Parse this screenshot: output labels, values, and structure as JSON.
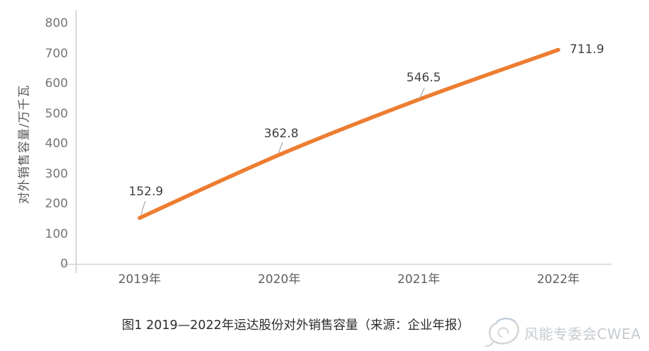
{
  "chart_data": {
    "type": "line",
    "title": "",
    "categories": [
      "2019年",
      "2020年",
      "2021年",
      "2022年"
    ],
    "values": [
      152.9,
      362.8,
      546.5,
      711.9
    ],
    "data_labels": [
      "152.9",
      "362.8",
      "546.5",
      "711.9"
    ],
    "xlabel": "",
    "ylabel": "对外销售容量/万千瓦",
    "ylim": [
      0,
      800
    ],
    "ytick_interval": 100,
    "yticks_top_down": [
      "800",
      "700",
      "600",
      "500",
      "400",
      "300",
      "200",
      "100",
      "0"
    ],
    "grid": false,
    "legend": false,
    "line_color": "#ED7D31",
    "axis_color": "#C9C9C9",
    "tick_label_color": "#767676",
    "data_label_color": "#3F3F3F"
  },
  "caption": {
    "text": "图1 2019—2022年运达股份对外销售容量（来源：企业年报）"
  },
  "watermark": {
    "text": "风能专委会CWEA"
  }
}
